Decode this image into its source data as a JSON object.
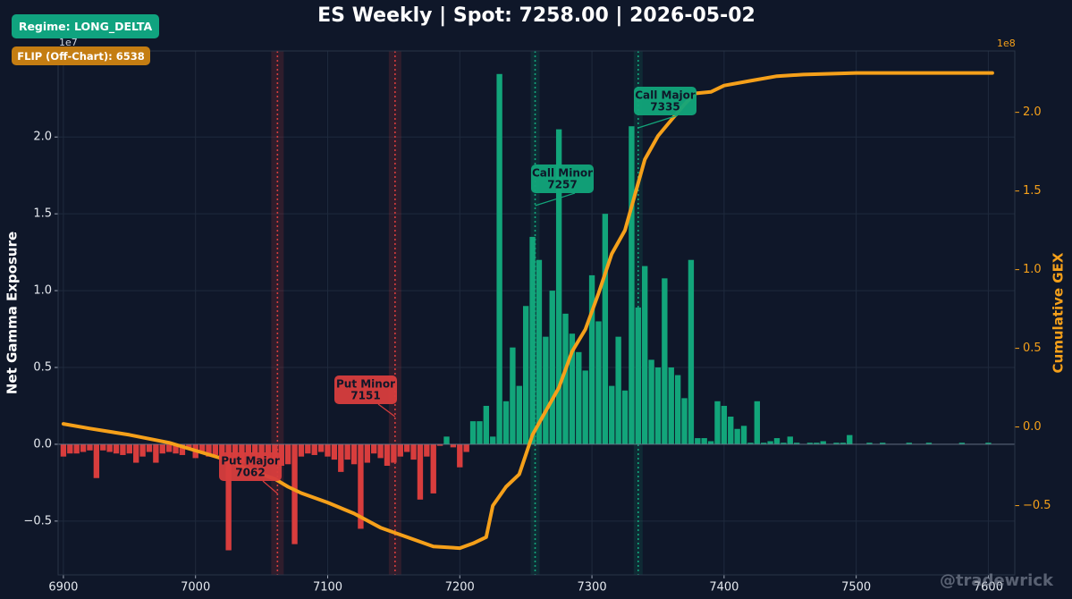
{
  "chart_data": {
    "type": "bar",
    "title": "ES Weekly | Spot: 7258.00 | 2026-05-02",
    "y_label": "Net Gamma Exposure",
    "y2_label": "Cumulative GEX",
    "y_offset_label": "1e7",
    "y2_offset_label": "1e8",
    "watermark": "@tradewrick",
    "badges": [
      {
        "text": "Regime: LONG_DELTA",
        "color": "#10a37f"
      },
      {
        "text": "FLIP (Off-Chart): 6538",
        "color": "#c47d12"
      }
    ],
    "color_positive": "#12a57a",
    "color_negative": "#d83d3d",
    "x": [
      6900,
      6905,
      6910,
      6915,
      6920,
      6925,
      6930,
      6935,
      6940,
      6945,
      6950,
      6955,
      6960,
      6965,
      6970,
      6975,
      6980,
      6985,
      6990,
      6995,
      7000,
      7005,
      7010,
      7015,
      7020,
      7025,
      7030,
      7035,
      7040,
      7045,
      7050,
      7055,
      7060,
      7065,
      7070,
      7075,
      7080,
      7085,
      7090,
      7095,
      7100,
      7105,
      7110,
      7115,
      7120,
      7125,
      7130,
      7135,
      7140,
      7145,
      7150,
      7155,
      7160,
      7165,
      7170,
      7175,
      7180,
      7185,
      7190,
      7195,
      7200,
      7205,
      7210,
      7215,
      7220,
      7225,
      7230,
      7235,
      7240,
      7245,
      7250,
      7255,
      7260,
      7265,
      7270,
      7275,
      7280,
      7285,
      7290,
      7295,
      7300,
      7305,
      7310,
      7315,
      7320,
      7325,
      7330,
      7335,
      7340,
      7345,
      7350,
      7355,
      7360,
      7365,
      7370,
      7375,
      7380,
      7385,
      7390,
      7395,
      7400,
      7405,
      7410,
      7415,
      7420,
      7425,
      7430,
      7435,
      7440,
      7445,
      7450,
      7455,
      7460,
      7465,
      7470,
      7475,
      7480,
      7485,
      7490,
      7495,
      7500,
      7505,
      7510,
      7515,
      7520,
      7525,
      7530,
      7535,
      7540,
      7545,
      7550,
      7555,
      7560,
      7565,
      7570,
      7575,
      7580,
      7585,
      7590,
      7595,
      7600
    ],
    "values": [
      -0.08,
      -0.06,
      -0.06,
      -0.05,
      -0.04,
      -0.22,
      -0.04,
      -0.05,
      -0.06,
      -0.07,
      -0.06,
      -0.12,
      -0.08,
      -0.05,
      -0.12,
      -0.06,
      -0.05,
      -0.06,
      -0.07,
      -0.03,
      -0.09,
      -0.05,
      -0.08,
      -0.07,
      -0.1,
      -0.69,
      -0.1,
      -0.12,
      -0.08,
      -0.12,
      -0.13,
      -0.1,
      -0.12,
      -0.14,
      -0.13,
      -0.65,
      -0.08,
      -0.06,
      -0.07,
      -0.05,
      -0.08,
      -0.1,
      -0.18,
      -0.1,
      -0.13,
      -0.55,
      -0.12,
      -0.06,
      -0.09,
      -0.14,
      -0.12,
      -0.08,
      -0.05,
      -0.1,
      -0.36,
      -0.08,
      -0.32,
      -0.01,
      0.05,
      -0.02,
      -0.15,
      -0.05,
      0.15,
      0.15,
      0.25,
      0.05,
      2.41,
      0.28,
      0.63,
      0.38,
      0.9,
      1.35,
      1.2,
      0.7,
      1.0,
      2.05,
      0.85,
      0.72,
      0.6,
      0.48,
      1.1,
      0.8,
      1.5,
      0.38,
      0.7,
      0.35,
      2.07,
      0.89,
      1.16,
      0.55,
      0.5,
      1.08,
      0.5,
      0.45,
      0.3,
      1.2,
      0.04,
      0.04,
      0.02,
      0.28,
      0.25,
      0.18,
      0.1,
      0.12,
      0.01,
      0.28,
      0.01,
      0.02,
      0.04,
      0.01,
      0.05,
      0.01,
      0,
      0.01,
      0.01,
      0.02,
      0,
      0.01,
      0.01,
      0.06,
      0,
      0,
      0.01,
      0,
      0.01,
      0,
      0,
      0,
      0.01,
      0,
      0,
      0.01,
      0,
      0,
      0,
      0,
      0.01,
      0,
      0,
      0,
      0.01
    ],
    "line": {
      "type": "line",
      "axis": "y2",
      "color": "#f5a01a",
      "x": [
        6900,
        6920,
        6950,
        6980,
        7000,
        7020,
        7040,
        7060,
        7070,
        7080,
        7100,
        7120,
        7140,
        7160,
        7180,
        7200,
        7210,
        7220,
        7225,
        7235,
        7245,
        7255,
        7265,
        7275,
        7285,
        7295,
        7305,
        7315,
        7325,
        7330,
        7340,
        7350,
        7360,
        7370,
        7378,
        7390,
        7400,
        7420,
        7440,
        7460,
        7500,
        7550,
        7603
      ],
      "values": [
        0.02,
        -0.01,
        -0.05,
        -0.1,
        -0.15,
        -0.2,
        -0.27,
        -0.33,
        -0.38,
        -0.42,
        -0.48,
        -0.55,
        -0.64,
        -0.7,
        -0.76,
        -0.77,
        -0.74,
        -0.7,
        -0.5,
        -0.38,
        -0.3,
        -0.05,
        0.1,
        0.25,
        0.48,
        0.62,
        0.85,
        1.1,
        1.25,
        1.4,
        1.7,
        1.85,
        1.95,
        2.05,
        2.12,
        2.13,
        2.17,
        2.2,
        2.23,
        2.24,
        2.25,
        2.25,
        2.25
      ]
    },
    "annotations": [
      {
        "label": "Put Major",
        "value": 7062,
        "color": "#d83d3d"
      },
      {
        "label": "Put Minor",
        "value": 7151,
        "color": "#d83d3d"
      },
      {
        "label": "Call Minor",
        "value": 7257,
        "color": "#12a57a"
      },
      {
        "label": "Call Major",
        "value": 7335,
        "color": "#12a57a"
      }
    ],
    "xlim": [
      6896,
      7620
    ],
    "xticks": [
      6900,
      7000,
      7100,
      7200,
      7300,
      7400,
      7500,
      7600
    ],
    "ylim": [
      -0.85,
      2.56
    ],
    "yticks": [
      {
        "value": -0.5,
        "label": "−0.5"
      },
      {
        "value": 0,
        "label": "0.0"
      },
      {
        "value": 0.5,
        "label": "0.5"
      },
      {
        "value": 1,
        "label": "1.0"
      },
      {
        "value": 1.5,
        "label": "1.5"
      },
      {
        "value": 2,
        "label": "2.0"
      }
    ],
    "y2lim": [
      -0.94,
      2.39
    ],
    "y2ticks": [
      {
        "value": -0.5,
        "label": "−0.5"
      },
      {
        "value": 0,
        "label": "0.0"
      },
      {
        "value": 0.5,
        "label": "0.5"
      },
      {
        "value": 1,
        "label": "1.0"
      },
      {
        "value": 1.5,
        "label": "1.5"
      },
      {
        "value": 2,
        "label": "2.0"
      }
    ],
    "grid": true
  }
}
